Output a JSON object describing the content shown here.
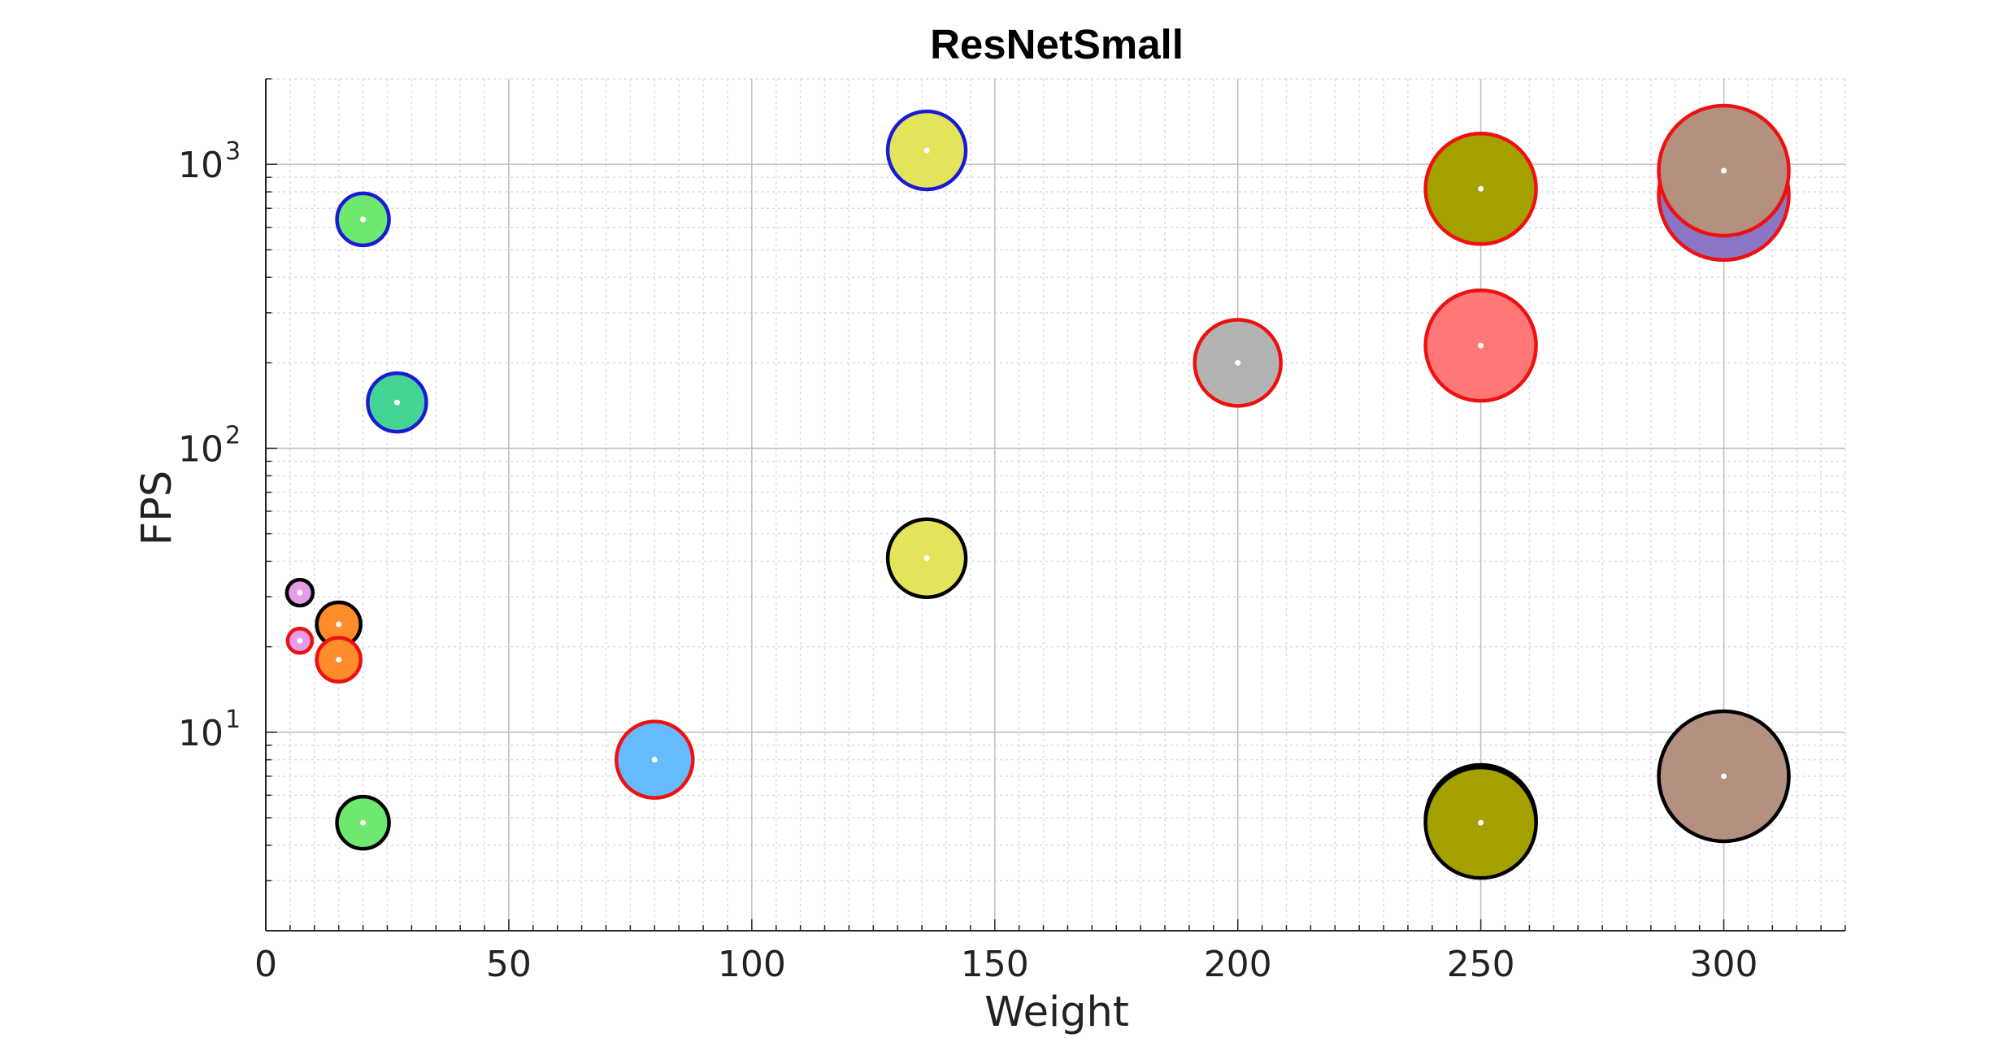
{
  "chart_data": {
    "type": "scatter",
    "title": "ResNetSmall",
    "xlabel": "Weight",
    "ylabel": "FPS",
    "xlim": [
      0,
      325
    ],
    "ylim": [
      2,
      2000
    ],
    "yscale": "log",
    "grid": true,
    "minor_grid": true,
    "xticks": [
      0,
      50,
      100,
      150,
      200,
      250,
      300
    ],
    "yticks": [
      {
        "value": 10,
        "base": "10",
        "exp": "1"
      },
      {
        "value": 100,
        "base": "10",
        "exp": "2"
      },
      {
        "value": 1000,
        "base": "10",
        "exp": "3"
      }
    ],
    "points": [
      {
        "x": 20,
        "y": 640,
        "size": 32,
        "fill": "#6ee86e",
        "edge": "#1a1ad6"
      },
      {
        "x": 27,
        "y": 145,
        "size": 36,
        "fill": "#44d494",
        "edge": "#1a1ad6"
      },
      {
        "x": 136,
        "y": 1120,
        "size": 48,
        "fill": "#e4e45a",
        "edge": "#1a1ad6"
      },
      {
        "x": 7,
        "y": 31,
        "size": 16,
        "fill": "#e89ce8",
        "edge": "#000000"
      },
      {
        "x": 7,
        "y": 21,
        "size": 15,
        "fill": "#e89ce8",
        "edge": "#ee1111"
      },
      {
        "x": 15,
        "y": 24,
        "size": 27,
        "fill": "#ff8c2a",
        "edge": "#000000"
      },
      {
        "x": 15,
        "y": 18,
        "size": 27,
        "fill": "#ff8c2a",
        "edge": "#ee1111"
      },
      {
        "x": 20,
        "y": 4.8,
        "size": 32,
        "fill": "#6ee86e",
        "edge": "#000000"
      },
      {
        "x": 80,
        "y": 8,
        "size": 47,
        "fill": "#66bbff",
        "edge": "#ee1111"
      },
      {
        "x": 136,
        "y": 41,
        "size": 48,
        "fill": "#e4e45a",
        "edge": "#000000"
      },
      {
        "x": 200,
        "y": 200,
        "size": 53,
        "fill": "#b3b3b3",
        "edge": "#ee1111"
      },
      {
        "x": 250,
        "y": 230,
        "size": 68,
        "fill": "#ff7777",
        "edge": "#ee1111"
      },
      {
        "x": 250,
        "y": 820,
        "size": 68,
        "fill": "#a3a000",
        "edge": "#ee1111"
      },
      {
        "x": 250,
        "y": 4.9,
        "size": 68,
        "fill": "#a3a000",
        "edge": "#000000"
      },
      {
        "x": 250,
        "y": 4.8,
        "size": 68,
        "fill": "#a3a000",
        "edge": "#000000"
      },
      {
        "x": 300,
        "y": 780,
        "size": 80,
        "fill": "#8b76c6",
        "edge": "#ee1111"
      },
      {
        "x": 300,
        "y": 950,
        "size": 80,
        "fill": "#b39080",
        "edge": "#ee1111"
      },
      {
        "x": 300,
        "y": 7,
        "size": 80,
        "fill": "#b39080",
        "edge": "#000000"
      }
    ]
  }
}
